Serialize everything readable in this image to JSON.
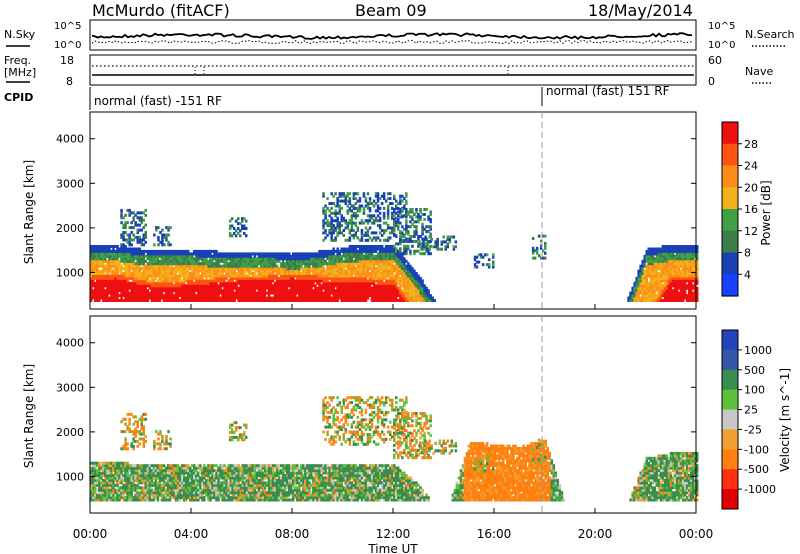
{
  "header": {
    "station": "McMurdo (fitACF)",
    "beam": "Beam 09",
    "date": "18/May/2014"
  },
  "noise_panel": {
    "left_label": "N.Sky",
    "right_label": "N.Search",
    "ticks_left": [
      "10^5",
      "10^0"
    ],
    "ticks_right": [
      "10^5",
      "10^0"
    ]
  },
  "freq_panel": {
    "left_label_1": "Freq.",
    "left_label_2": "[MHz]",
    "ticks_left": [
      "18",
      "8"
    ],
    "ticks_right": [
      "60",
      "0"
    ],
    "right_label": "Nave"
  },
  "cpid_panel": {
    "label": "CPID",
    "segments": [
      {
        "text": "normal (fast) -151 RF",
        "start_hour": 0
      },
      {
        "text": "normal (fast) 151 RF",
        "start_hour": 18
      }
    ]
  },
  "axes": {
    "ylabel": "Slant Range [km]",
    "yticks": [
      "4000",
      "3000",
      "2000",
      "1000"
    ],
    "xticks": [
      "00:00",
      "04:00",
      "08:00",
      "12:00",
      "16:00",
      "20:00",
      "00:00"
    ],
    "xlabel": "Time UT",
    "ylim": [
      180,
      4600
    ],
    "xlim_hours": [
      0,
      24
    ],
    "dashed_marker_hour": 18
  },
  "power_colorbar": {
    "title": "Power [dB]",
    "labels": [
      "28",
      "24",
      "20",
      "16",
      "12",
      "8",
      "4"
    ],
    "colors": [
      "#ee1111",
      "#ff5511",
      "#ff8c1a",
      "#f2b21a",
      "#3fa047",
      "#3b7d4a",
      "#1a40b8",
      "#1a40ff"
    ]
  },
  "velocity_colorbar": {
    "title": "Velocity [m s^-1]",
    "labels": [
      "1000",
      "500",
      "100",
      "25",
      "-25",
      "-100",
      "-500",
      "-1000"
    ],
    "colors": [
      "#2244bb",
      "#3355aa",
      "#3b8c4f",
      "#5dc23a",
      "#c8c8c8",
      "#f0a030",
      "#ff8010",
      "#ff3010",
      "#e00000"
    ]
  },
  "chart_data": [
    {
      "type": "heatmap",
      "title": "Power [dB]",
      "xlabel": "Time UT",
      "ylabel": "Slant Range [km]",
      "ylim": [
        180,
        4600
      ],
      "x_hours": [
        0,
        1,
        2,
        3,
        4,
        5,
        6,
        7,
        8,
        9,
        10,
        11,
        12,
        13,
        14,
        15,
        16,
        17,
        18,
        19,
        20,
        21,
        22,
        23,
        24
      ],
      "band_top_km": [
        1600,
        1600,
        1500,
        1500,
        1500,
        1450,
        1450,
        1450,
        1400,
        1450,
        1550,
        1600,
        1600,
        900,
        0,
        0,
        0,
        0,
        0,
        0,
        0,
        0,
        1500,
        1600,
        1600
      ],
      "red_core_top_km": [
        900,
        950,
        800,
        750,
        800,
        850,
        900,
        900,
        950,
        900,
        850,
        850,
        800,
        0,
        0,
        0,
        0,
        0,
        0,
        0,
        0,
        0,
        0,
        900,
        900
      ]
    },
    {
      "type": "heatmap",
      "title": "Velocity [m s^-1]",
      "xlabel": "Time UT",
      "ylabel": "Slant Range [km]",
      "ylim": [
        180,
        4600
      ],
      "x_hours": [
        0,
        1,
        2,
        3,
        4,
        5,
        6,
        7,
        8,
        9,
        10,
        11,
        12,
        13,
        14,
        15,
        16,
        17,
        18,
        19,
        20,
        21,
        22,
        23,
        24
      ],
      "band_top_km": [
        1300,
        1300,
        1250,
        1250,
        1250,
        1250,
        1250,
        1250,
        1250,
        1250,
        1250,
        1250,
        1250,
        800,
        0,
        1750,
        1700,
        1650,
        1800,
        0,
        0,
        0,
        1400,
        1500,
        1500
      ]
    }
  ]
}
